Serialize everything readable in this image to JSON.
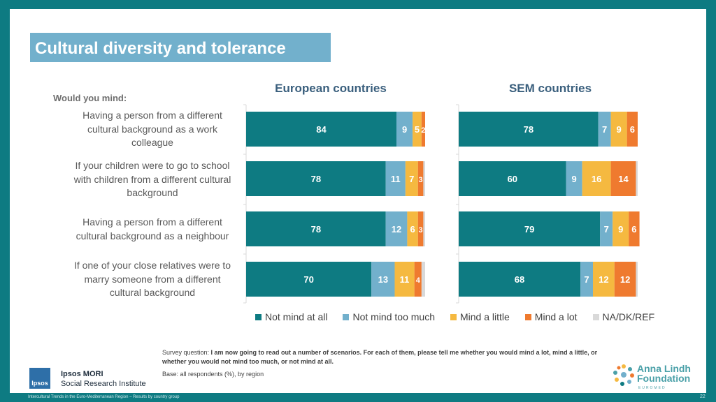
{
  "title": "Cultural diversity and tolerance",
  "would_you_mind": "Would you mind:",
  "questions": [
    [
      "Having a person from a different",
      "cultural background as a work",
      "colleague"
    ],
    [
      "If your children were to go to school",
      "with children from a different cultural",
      "background"
    ],
    [
      "Having a person from a different",
      "cultural background as a neighbour"
    ],
    [
      "If one of your close relatives were to",
      "marry someone from a different",
      "cultural background"
    ]
  ],
  "chart_data": {
    "type": "bar",
    "orientation": "horizontal",
    "stacked": true,
    "xlim": [
      0,
      100
    ],
    "unit": "%",
    "categories": [
      "Having a person from a different cultural background as a work colleague",
      "If your children were to go to school with children from a different cultural background",
      "Having a person from a different cultural background as a neighbour",
      "If one of your close relatives were to marry someone from a different cultural background"
    ],
    "panels": [
      {
        "title": "European countries",
        "series": [
          {
            "name": "Not mind at all",
            "values": [
              84,
              78,
              78,
              70
            ]
          },
          {
            "name": "Not mind too much",
            "values": [
              9,
              11,
              12,
              13
            ]
          },
          {
            "name": "Mind a little",
            "values": [
              5,
              7,
              6,
              11
            ]
          },
          {
            "name": "Mind a lot",
            "values": [
              2,
              3,
              3,
              4
            ]
          },
          {
            "name": "NA/DK/REF",
            "values": [
              0,
              1,
              1,
              2
            ]
          }
        ]
      },
      {
        "title": "SEM countries",
        "series": [
          {
            "name": "Not mind at all",
            "values": [
              78,
              60,
              79,
              68
            ]
          },
          {
            "name": "Not mind too much",
            "values": [
              7,
              9,
              7,
              7
            ]
          },
          {
            "name": "Mind a little",
            "values": [
              9,
              16,
              9,
              12
            ]
          },
          {
            "name": "Mind a lot",
            "values": [
              6,
              14,
              6,
              12
            ]
          },
          {
            "name": "NA/DK/REF",
            "values": [
              0,
              1,
              0,
              1
            ]
          }
        ]
      }
    ],
    "labels_shown": [
      true,
      true,
      true,
      true,
      false
    ],
    "colors": [
      "#0e7b82",
      "#72b0cc",
      "#f5b940",
      "#ef7a2f",
      "#d9d9d9"
    ],
    "legend_position": "bottom"
  },
  "legend": [
    "Not mind at all",
    "Not mind too much",
    "Mind a little",
    "Mind a lot",
    "NA/DK/REF"
  ],
  "survey": {
    "prefix": "Survey question: ",
    "question": "I am now going to read out a number of scenarios. For each of them, please tell me whether you would mind a lot, mind a little, or whether you would not mind too much, or not mind at all.",
    "base": "Base: all respondents (%), by region"
  },
  "branding": {
    "ipsos_logo": "Ipsos",
    "ipsos_line1": "Ipsos MORI",
    "ipsos_line2": "Social Research Institute",
    "alf_line1": "Anna Lindh",
    "alf_line2": "Foundation",
    "alf_sub": "EUROMED"
  },
  "footer": "Intercultural Trends in the Euro-Mediterranean Region – Results by country group",
  "page_number": "22"
}
